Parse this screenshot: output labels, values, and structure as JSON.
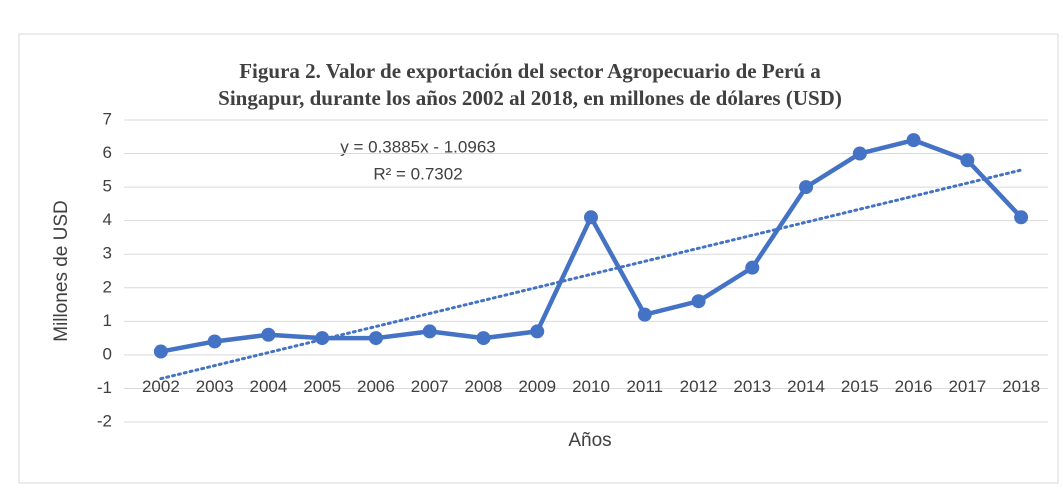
{
  "chart_data": {
    "type": "line",
    "title": [
      "Figura 2. Valor de exportación del sector Agropecuario de Perú a",
      "Singapur, durante los años 2002 al 2018, en millones de dólares (USD)"
    ],
    "x_label": "Años",
    "y_label": "Millones de USD",
    "categories": [
      "2002",
      "2003",
      "2004",
      "2005",
      "2006",
      "2007",
      "2008",
      "2009",
      "2010",
      "2011",
      "2012",
      "2013",
      "2014",
      "2015",
      "2016",
      "2017",
      "2018"
    ],
    "series": [
      {
        "color": "#4472c4",
        "values": [
          0.1,
          0.4,
          0.6,
          0.5,
          0.5,
          0.7,
          0.5,
          0.7,
          4.1,
          1.2,
          1.6,
          2.6,
          5.0,
          6.0,
          6.4,
          5.8,
          4.1
        ]
      }
    ],
    "trendline": {
      "slope": 0.3885,
      "intercept": -1.0963,
      "equation_label": "y = 0.3885x - 1.0963",
      "r2": 0.7302,
      "r2_label": "R² = 0.7302",
      "color": "#4472c4"
    },
    "ylim": [
      -2,
      7
    ],
    "yticks": [
      -2,
      -1,
      0,
      1,
      2,
      3,
      4,
      5,
      6,
      7
    ],
    "grid": true
  }
}
